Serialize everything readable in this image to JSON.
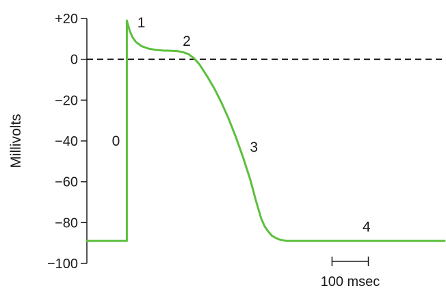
{
  "chart_data": {
    "type": "line",
    "title": "",
    "xlabel": "",
    "ylabel": "Millivolts",
    "ylim": [
      -100,
      20
    ],
    "yticks": [
      20,
      0,
      -20,
      -40,
      -60,
      -80,
      -100
    ],
    "ytick_labels": [
      "+20",
      "0",
      "−20",
      "−40",
      "−60",
      "−80",
      "−100"
    ],
    "x_unit": "msec",
    "xlim": [
      -110,
      875
    ],
    "grid": false,
    "reference_line": {
      "y": 0,
      "style": "dashed"
    },
    "series": [
      {
        "color": "#5cbf3d",
        "x": [
          -110,
          0,
          0,
          3,
          8,
          15,
          25,
          40,
          60,
          80,
          100,
          120,
          140,
          155,
          170,
          185,
          200,
          220,
          240,
          260,
          280,
          300,
          320,
          340,
          355,
          370,
          380,
          390,
          400,
          410,
          420,
          440,
          460,
          480,
          500,
          600,
          700,
          800,
          875
        ],
        "values": [
          -89,
          -89,
          19,
          17,
          14,
          11,
          8.5,
          6.5,
          5.2,
          4.6,
          4.3,
          4.2,
          4,
          3.5,
          2.5,
          0.5,
          -2.5,
          -8,
          -14,
          -21,
          -29,
          -38,
          -48,
          -59,
          -69,
          -78,
          -82,
          -84.5,
          -86.5,
          -87.5,
          -88.3,
          -89,
          -89,
          -89,
          -89,
          -89,
          -89,
          -89,
          -89
        ]
      }
    ],
    "phase_labels": [
      {
        "text": "0",
        "x": -30,
        "y": -40
      },
      {
        "text": "1",
        "x": 40,
        "y": 18
      },
      {
        "text": "2",
        "x": 165,
        "y": 9
      },
      {
        "text": "3",
        "x": 350,
        "y": -43
      },
      {
        "text": "4",
        "x": 660,
        "y": -82
      }
    ],
    "scale_bar": {
      "label": "100 msec",
      "length": 100,
      "from": 565,
      "y": -99
    }
  }
}
